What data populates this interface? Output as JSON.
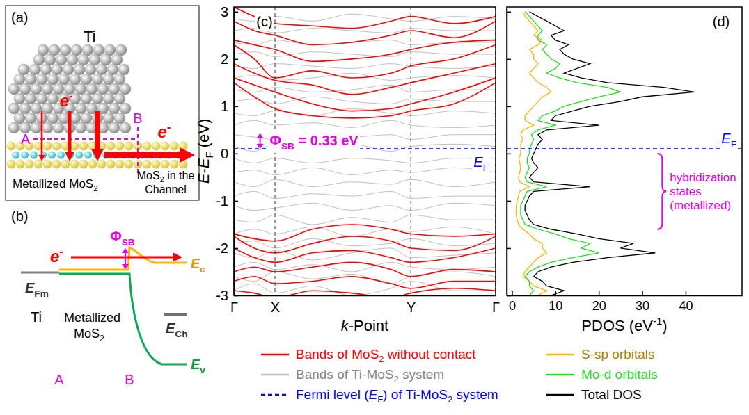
{
  "diagrams": {
    "a": {
      "title": "(a)",
      "metal": "Ti",
      "electron": [
        {
          "i": "e"
        },
        {
          "sup": "-"
        }
      ],
      "point_a": "A",
      "point_b": "B",
      "left_label": [
        "Metallized MoS",
        {
          "sub": "2"
        }
      ],
      "right_label": [
        [
          "MoS",
          {
            "sub": "2"
          },
          " in the"
        ],
        [
          "Channel"
        ]
      ]
    },
    "b": {
      "title": "(b)",
      "electron": [
        {
          "i": "e"
        },
        {
          "sup": "-"
        }
      ],
      "barrier": [
        "Φ",
        {
          "sub": "SB"
        }
      ],
      "metal_level": [
        {
          "i": "E"
        },
        {
          "sub": "Fm"
        }
      ],
      "channel_level": [
        {
          "i": "E"
        },
        {
          "sub": "Ch"
        }
      ],
      "conduction_band": [
        {
          "i": "E"
        },
        {
          "sub": "c"
        }
      ],
      "valence_band": [
        {
          "i": "E"
        },
        {
          "sub": "v"
        }
      ],
      "metal": "Ti",
      "middle": [
        [
          "Metallized"
        ],
        [
          "MoS",
          {
            "sub": "2"
          }
        ]
      ],
      "point_a": "A",
      "point_b": "B"
    }
  },
  "chart_data": [
    {
      "type": "line",
      "title": "(c)",
      "x_label": [
        {
          "i": "k"
        },
        "-Point"
      ],
      "y_label": [
        {
          "i": "E"
        },
        "-",
        {
          "i": "E"
        },
        {
          "sub": "F"
        },
        " (eV)"
      ],
      "x": [
        0,
        0.078,
        0.157,
        0.3,
        0.45,
        0.6,
        0.676,
        0.84,
        1
      ],
      "xlim": [
        0,
        1
      ],
      "xticks": [
        {
          "value": 0,
          "label": "Γ"
        },
        {
          "value": 0.157,
          "label": "X"
        },
        {
          "value": 0.676,
          "label": "Y"
        },
        {
          "value": 1,
          "label": "Γ"
        }
      ],
      "ylim": [
        -3,
        3.1
      ],
      "yticks": [
        -3,
        -2,
        -1,
        0,
        1,
        2,
        3
      ],
      "grid": "x",
      "legend": "bottom",
      "series": [
        {
          "name": [
            "Bands of MoS",
            {
              "sub": "2"
            },
            " without contact"
          ],
          "color": "#ff0000",
          "values": [
            [
              1.5,
              1.2,
              0.95,
              0.8,
              0.75,
              0.8,
              0.9,
              1.05,
              1.5
            ],
            [
              1.6,
              1.45,
              1.3,
              1.05,
              0.9,
              0.95,
              1.05,
              1.3,
              1.6
            ],
            [
              1.9,
              1.7,
              1.55,
              1.45,
              1.25,
              1.4,
              1.5,
              1.7,
              1.9
            ],
            [
              2.3,
              2.0,
              1.6,
              1.75,
              1.6,
              1.7,
              1.85,
              2.0,
              2.3
            ],
            [
              2.4,
              2.3,
              2.2,
              1.95,
              2.0,
              2.1,
              2.2,
              2.35,
              2.4
            ],
            [
              2.8,
              2.6,
              2.5,
              2.3,
              2.35,
              2.5,
              2.6,
              2.45,
              2.8
            ],
            [
              3.1,
              2.9,
              2.75,
              2.7,
              2.65,
              2.8,
              2.9,
              2.75,
              2.9
            ],
            [
              -1.7,
              -1.8,
              -1.85,
              -1.6,
              -1.5,
              -1.6,
              -1.7,
              -1.75,
              -1.7
            ],
            [
              -1.75,
              -2.0,
              -2.1,
              -1.9,
              -1.75,
              -1.85,
              -2.0,
              -2.05,
              -1.75
            ],
            [
              -2.0,
              -2.2,
              -2.3,
              -2.1,
              -2.05,
              -2.2,
              -2.3,
              -2.2,
              -2.0
            ],
            [
              -2.5,
              -2.4,
              -2.5,
              -2.4,
              -2.3,
              -2.45,
              -2.6,
              -2.45,
              -2.5
            ],
            [
              -2.7,
              -2.6,
              -2.75,
              -2.7,
              -2.6,
              -2.75,
              -2.85,
              -2.7,
              -2.7
            ],
            [
              -2.9,
              -2.95,
              -3.05,
              -2.9,
              -2.95,
              -3.05,
              -2.95,
              -2.85,
              -2.9
            ]
          ]
        },
        {
          "name": [
            "Bands of Ti-MoS",
            {
              "sub": "2"
            },
            " system"
          ],
          "color": "#c0c0c0",
          "values": [
            [
              -2.9,
              -2.75,
              -2.95,
              -2.8,
              -3.0,
              -2.85,
              -2.7,
              -2.9,
              -2.9
            ],
            [
              -2.6,
              -2.7,
              -2.5,
              -2.65,
              -2.55,
              -2.75,
              -2.6,
              -2.5,
              -2.6
            ],
            [
              -2.4,
              -2.3,
              -2.45,
              -2.35,
              -2.5,
              -2.3,
              -2.4,
              -2.45,
              -2.4
            ],
            [
              -2.1,
              -2.2,
              -2.05,
              -2.25,
              -2.1,
              -2.0,
              -2.2,
              -2.15,
              -2.1
            ],
            [
              -1.9,
              -1.85,
              -2.0,
              -1.8,
              -1.95,
              -1.9,
              -1.8,
              -1.95,
              -1.9
            ],
            [
              -1.7,
              -1.6,
              -1.7,
              -1.55,
              -1.75,
              -1.6,
              -1.65,
              -1.55,
              -1.7
            ],
            [
              -1.4,
              -1.45,
              -1.3,
              -1.5,
              -1.35,
              -1.45,
              -1.3,
              -1.4,
              -1.4
            ],
            [
              -1.1,
              -1.2,
              -1.15,
              -1.05,
              -1.2,
              -1.1,
              -1.2,
              -1.05,
              -1.1
            ],
            [
              -0.9,
              -0.8,
              -0.95,
              -0.85,
              -0.9,
              -0.8,
              -0.95,
              -0.9,
              -0.9
            ],
            [
              -0.6,
              -0.7,
              -0.55,
              -0.7,
              -0.6,
              -0.65,
              -0.55,
              -0.7,
              -0.6
            ],
            [
              -0.4,
              -0.35,
              -0.45,
              -0.3,
              -0.45,
              -0.35,
              -0.4,
              -0.3,
              -0.4
            ],
            [
              -0.1,
              -0.2,
              -0.1,
              -0.2,
              -0.1,
              -0.15,
              -0.2,
              -0.1,
              -0.1
            ],
            [
              0.15,
              0.05,
              0.2,
              0.1,
              0.2,
              0.05,
              0.15,
              0.2,
              0.15
            ],
            [
              0.4,
              0.35,
              0.3,
              0.45,
              0.35,
              0.4,
              0.3,
              0.4,
              0.4
            ],
            [
              0.6,
              0.7,
              0.6,
              0.65,
              0.55,
              0.7,
              0.6,
              0.55,
              0.6
            ],
            [
              0.85,
              0.8,
              0.9,
              0.8,
              0.95,
              0.85,
              0.8,
              0.9,
              0.85
            ],
            [
              1.1,
              1.15,
              1.05,
              1.2,
              1.1,
              1.05,
              1.15,
              1.1,
              1.1
            ],
            [
              1.35,
              1.3,
              1.4,
              1.3,
              1.35,
              1.45,
              1.3,
              1.35,
              1.35
            ],
            [
              1.6,
              1.65,
              1.55,
              1.6,
              1.7,
              1.55,
              1.6,
              1.65,
              1.6
            ],
            [
              1.85,
              1.8,
              1.9,
              1.85,
              1.8,
              1.9,
              1.85,
              1.8,
              1.85
            ],
            [
              2.1,
              2.15,
              2.05,
              2.15,
              2.1,
              2.05,
              2.15,
              2.1,
              2.1
            ],
            [
              2.35,
              2.3,
              2.4,
              2.3,
              2.35,
              2.4,
              2.3,
              2.35,
              2.35
            ],
            [
              2.6,
              2.65,
              2.55,
              2.65,
              2.6,
              2.55,
              2.65,
              2.6,
              2.6
            ],
            [
              2.85,
              2.8,
              2.9,
              2.8,
              2.95,
              2.85,
              2.8,
              2.9,
              2.85
            ]
          ]
        }
      ],
      "fermi_level": {
        "name": [
          "Fermi level (",
          {
            "i": "E"
          },
          {
            "sub": "F"
          },
          ") of Ti-MoS",
          {
            "sub": "2"
          },
          " system"
        ],
        "value": 0.1,
        "color": "#0000ff",
        "line_style": "dashed"
      },
      "fermi_label": [
        {
          "i": "E"
        },
        {
          "sub": "F"
        }
      ],
      "phi_sb": {
        "label": [
          "Φ",
          {
            "sub": "SB"
          },
          " = 0.33 eV"
        ],
        "value": 0.33
      }
    },
    {
      "type": "line",
      "orientation": "horizontal",
      "title": "(d)",
      "x_label": [
        "PDOS (eV",
        {
          "sup": "-1"
        },
        ")"
      ],
      "y": [
        -3,
        -2.9,
        -2.8,
        -2.7,
        -2.6,
        -2.5,
        -2.4,
        -2.3,
        -2.2,
        -2.1,
        -2,
        -1.9,
        -1.8,
        -1.7,
        -1.6,
        -1.5,
        -1.4,
        -1.3,
        -1.2,
        -1.1,
        -1,
        -0.9,
        -0.8,
        -0.7,
        -0.6,
        -0.5,
        -0.4,
        -0.3,
        -0.2,
        -0.1,
        0,
        0.1,
        0.2,
        0.3,
        0.4,
        0.5,
        0.6,
        0.7,
        0.8,
        0.9,
        1,
        1.1,
        1.2,
        1.3,
        1.4,
        1.5,
        1.6,
        1.7,
        1.8,
        1.9,
        2,
        2.1,
        2.2,
        2.3,
        2.4,
        2.5,
        2.6,
        2.7,
        2.8,
        2.9,
        3
      ],
      "xlim": [
        -1.2,
        53
      ],
      "xticks": [
        0,
        10,
        20,
        30,
        40
      ],
      "ylim": [
        -3,
        3.1
      ],
      "yticks": [
        -3,
        -2,
        -1,
        0,
        1,
        2,
        3
      ],
      "tick_labels": "x",
      "legend": "bottom",
      "series": [
        {
          "name": "S-sp orbitals",
          "color": "#ffb400",
          "values": [
            6,
            8,
            5,
            4,
            2.5,
            3,
            4,
            5,
            6,
            8,
            7,
            7,
            5,
            4,
            2.5,
            1.5,
            1.2,
            1,
            1,
            1,
            1.2,
            1.5,
            1.8,
            4,
            1.8,
            1.5,
            1.8,
            2,
            1.8,
            1.6,
            2,
            2,
            2,
            2.5,
            2,
            2.5,
            5,
            3,
            3,
            4,
            5,
            6,
            7,
            9,
            8,
            6,
            5,
            4,
            5,
            6,
            5,
            5,
            4,
            6,
            7,
            5,
            6,
            5,
            4,
            3,
            2.5
          ]
        },
        {
          "name": "Mo-d orbitals",
          "color": "#22dd22",
          "values": [
            4,
            5,
            4,
            4,
            3,
            4,
            6,
            9,
            14,
            20,
            16,
            18,
            13,
            10,
            6,
            3,
            2.5,
            2,
            2,
            2,
            2.5,
            3,
            3.5,
            8,
            3.5,
            3,
            3.5,
            4,
            3.5,
            3.5,
            4,
            4,
            4.5,
            5,
            4.5,
            6,
            10,
            6,
            7,
            10,
            12,
            16,
            20,
            25,
            22,
            15,
            11,
            8,
            10,
            11,
            9,
            8,
            7,
            8,
            6,
            6,
            7,
            6,
            5,
            4,
            3
          ]
        },
        {
          "name": "Total DOS",
          "color": "#000000",
          "values": [
            9,
            12,
            8,
            7,
            5,
            6,
            9,
            14,
            22,
            33,
            25,
            28,
            20,
            15,
            9,
            5,
            4,
            3.5,
            3,
            3,
            3.5,
            4,
            5,
            18,
            5,
            4,
            5,
            6,
            5,
            4.5,
            5,
            5.5,
            6,
            7,
            6,
            8,
            20,
            9,
            10,
            14,
            18,
            25,
            30,
            42,
            35,
            22,
            16,
            12,
            15,
            18,
            14,
            12,
            11,
            13,
            10,
            9,
            12,
            10,
            8,
            6,
            4
          ]
        }
      ],
      "fermi_level": {
        "value": 0.1,
        "color": "#0000ff",
        "line_style": "dashed"
      },
      "fermi_label": [
        {
          "i": "E"
        },
        {
          "sub": "F"
        }
      ],
      "hybridization": {
        "label": "hybridization states (metallized)",
        "span": [
          0,
          -1.6
        ]
      }
    }
  ]
}
